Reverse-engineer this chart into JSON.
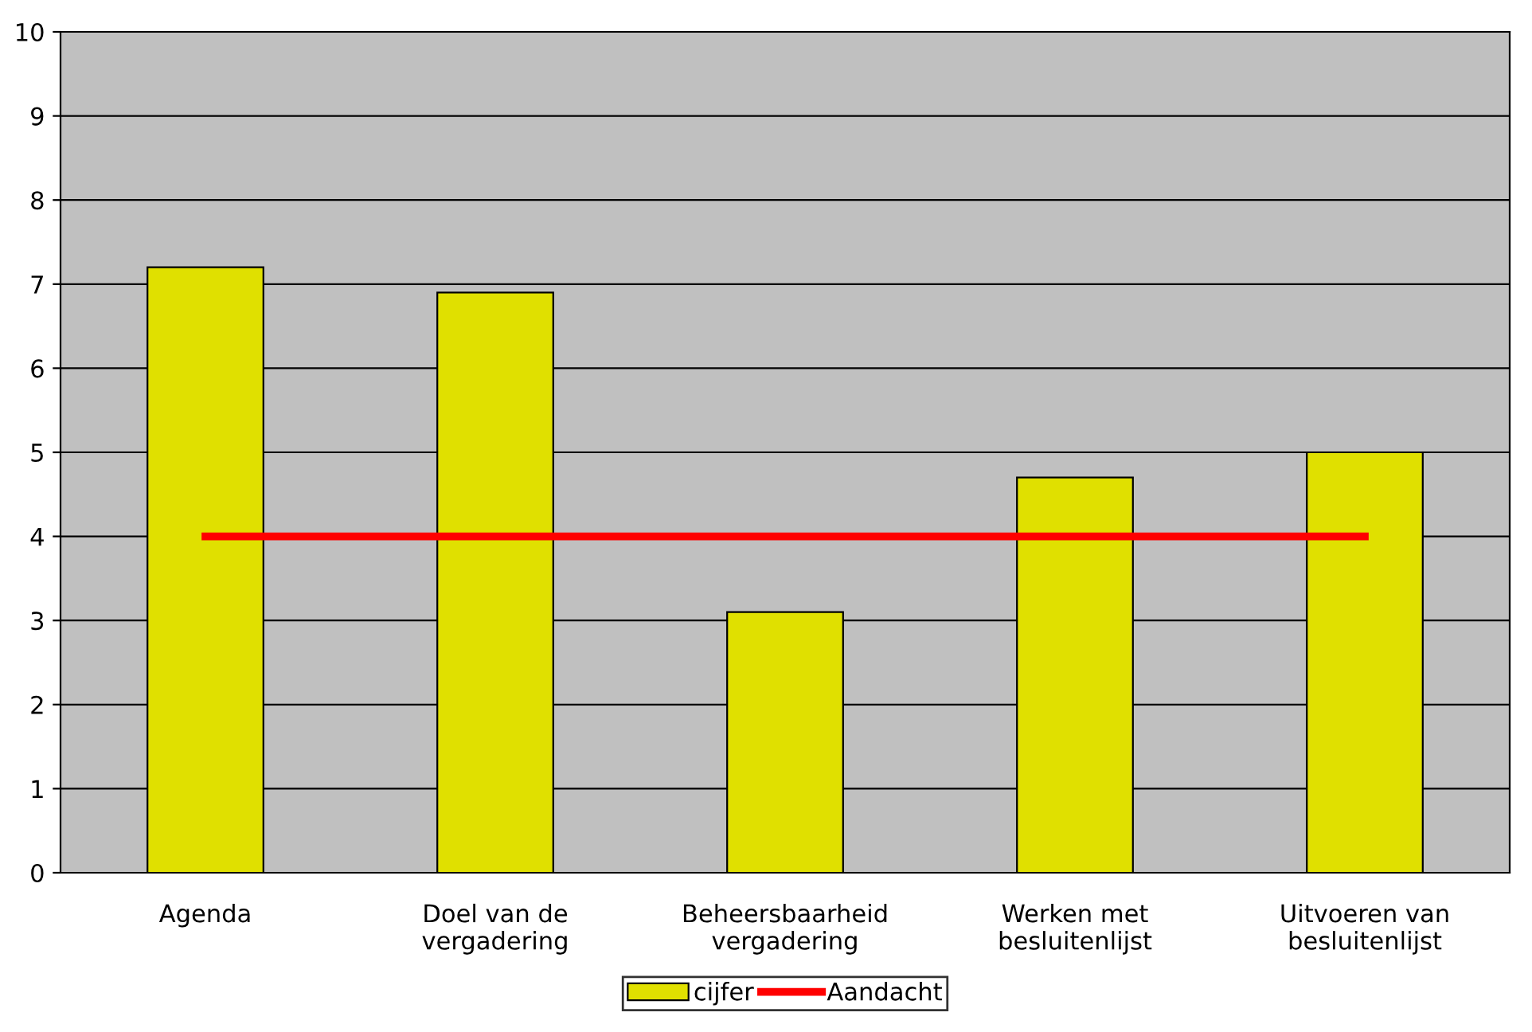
{
  "chart_data": {
    "type": "bar",
    "categories": [
      "Agenda",
      "Doel van de\nvergadering",
      "Beheersbaarheid\nvergadering",
      "Werken met\nbesluitenlijst",
      "Uitvoeren van\nbesluitenlijst"
    ],
    "series": [
      {
        "name": "cijfer",
        "color": "#e0e000",
        "values": [
          7.2,
          6.9,
          3.1,
          4.7,
          5.0
        ]
      },
      {
        "name": "Aandacht",
        "type": "line",
        "color": "#ff0000",
        "values": [
          4,
          4,
          4,
          4,
          4
        ]
      }
    ],
    "ylim": [
      0,
      10
    ],
    "yticks": [
      0,
      1,
      2,
      3,
      4,
      5,
      6,
      7,
      8,
      9,
      10
    ],
    "grid": "y",
    "legend": "bottom"
  }
}
